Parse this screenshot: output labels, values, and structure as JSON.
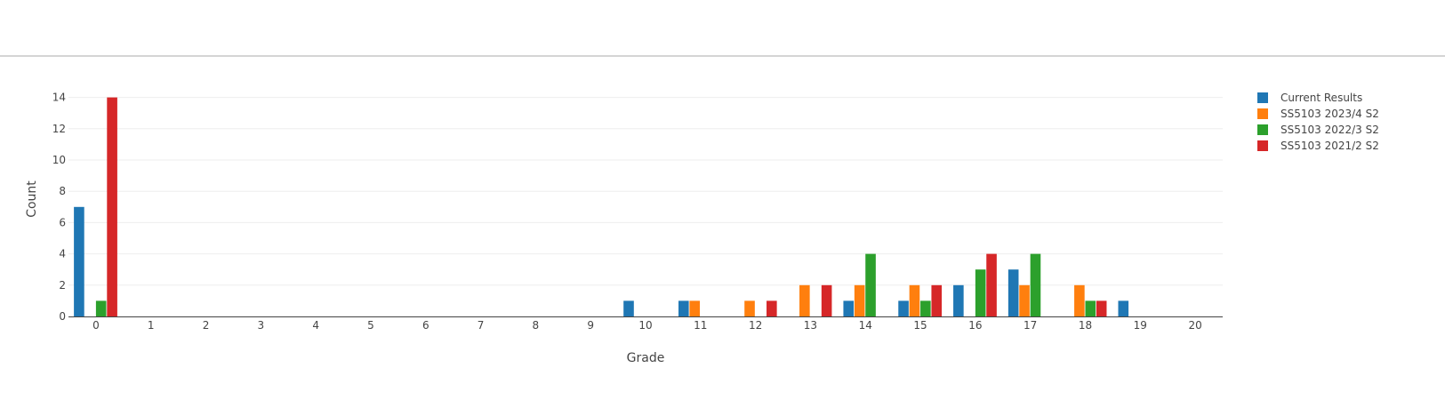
{
  "chart_data": {
    "type": "bar",
    "xlabel": "Grade",
    "ylabel": "Count",
    "ylim": [
      0,
      15
    ],
    "yticks": [
      0,
      2,
      4,
      6,
      8,
      10,
      12,
      14
    ],
    "categories": [
      "0",
      "1",
      "2",
      "3",
      "4",
      "5",
      "6",
      "7",
      "8",
      "9",
      "10",
      "11",
      "12",
      "13",
      "14",
      "15",
      "16",
      "17",
      "18",
      "19",
      "20"
    ],
    "grid": "horizontal",
    "legend_position": "top-right",
    "series": [
      {
        "name": "Current Results",
        "color": "#1f77b4",
        "values": [
          7,
          0,
          0,
          0,
          0,
          0,
          0,
          0,
          0,
          0,
          1,
          1,
          0,
          0,
          1,
          1,
          2,
          3,
          0,
          1,
          0
        ]
      },
      {
        "name": "SS5103 2023/4 S2",
        "color": "#ff7f0e",
        "values": [
          0,
          0,
          0,
          0,
          0,
          0,
          0,
          0,
          0,
          0,
          0,
          1,
          1,
          2,
          2,
          2,
          0,
          2,
          2,
          0,
          0
        ]
      },
      {
        "name": "SS5103 2022/3 S2",
        "color": "#2ca02c",
        "values": [
          1,
          0,
          0,
          0,
          0,
          0,
          0,
          0,
          0,
          0,
          0,
          0,
          0,
          0,
          4,
          1,
          3,
          4,
          1,
          0,
          0
        ]
      },
      {
        "name": "SS5103 2021/2 S2",
        "color": "#d62728",
        "values": [
          14,
          0,
          0,
          0,
          0,
          0,
          0,
          0,
          0,
          0,
          0,
          0,
          1,
          2,
          0,
          2,
          4,
          0,
          1,
          0,
          0
        ]
      }
    ]
  }
}
